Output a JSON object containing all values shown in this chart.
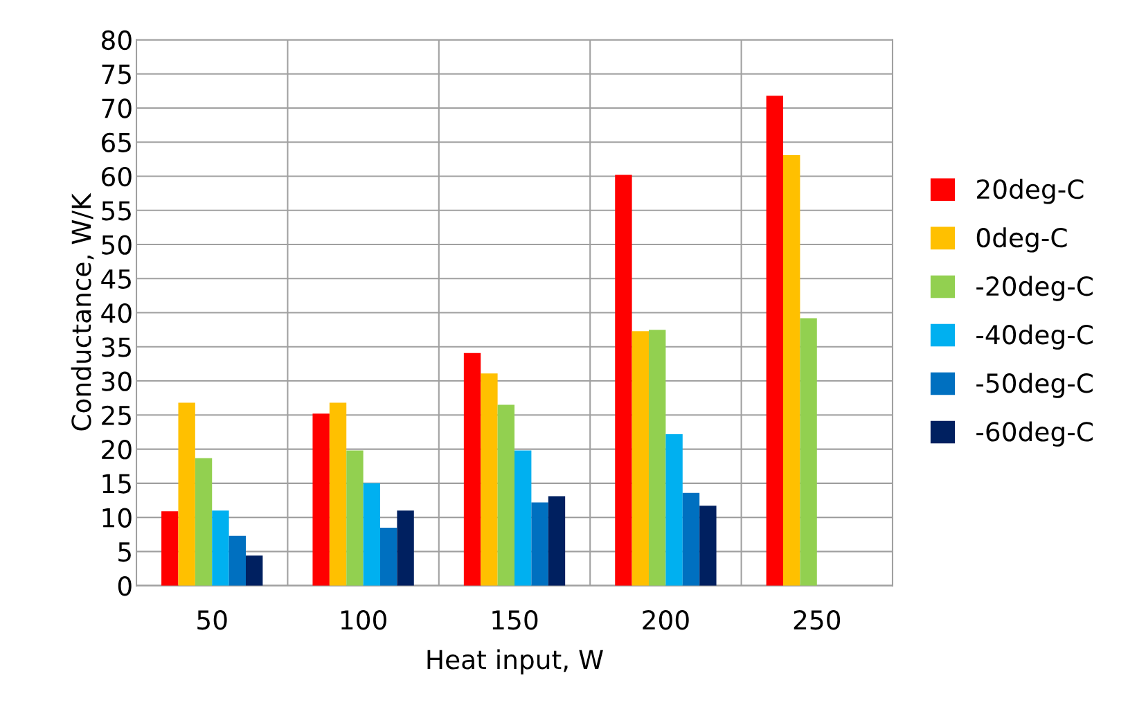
{
  "chart_data": {
    "type": "bar",
    "xlabel": "Heat input, W",
    "ylabel": "Conductance, W/K",
    "categories": [
      "50",
      "100",
      "150",
      "200",
      "250"
    ],
    "series": [
      {
        "name": "20deg-C",
        "color": "#ff0000",
        "values": [
          10.9,
          25.2,
          34.1,
          60.2,
          71.8
        ]
      },
      {
        "name": "0deg-C",
        "color": "#ffc000",
        "values": [
          26.8,
          26.8,
          31.1,
          37.3,
          63.1
        ]
      },
      {
        "name": "-20deg-C",
        "color": "#92d050",
        "values": [
          18.7,
          19.8,
          26.5,
          37.5,
          39.2
        ]
      },
      {
        "name": "-40deg-C",
        "color": "#00b0f0",
        "values": [
          11.0,
          15.0,
          19.8,
          22.2,
          null
        ]
      },
      {
        "name": "-50deg-C",
        "color": "#0070c0",
        "values": [
          7.3,
          8.5,
          12.2,
          13.6,
          null
        ]
      },
      {
        "name": "-60deg-C",
        "color": "#002060",
        "values": [
          4.4,
          11.0,
          13.1,
          11.7,
          null
        ]
      }
    ],
    "ylim": [
      0,
      80
    ],
    "yticks": [
      0,
      5,
      10,
      15,
      20,
      25,
      30,
      35,
      40,
      45,
      50,
      55,
      60,
      65,
      70,
      75,
      80
    ],
    "grid": true,
    "legend": "right"
  }
}
